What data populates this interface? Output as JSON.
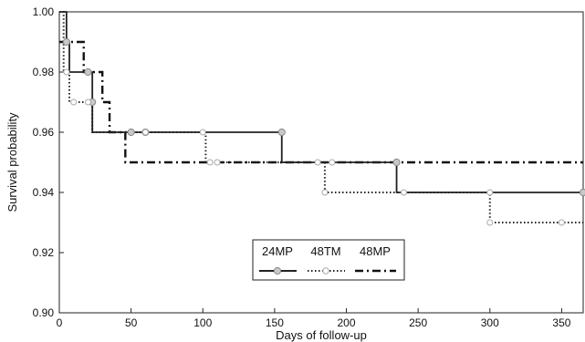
{
  "chart_data": {
    "type": "line",
    "subtype": "step",
    "xlabel": "Days of follow-up",
    "ylabel": "Survival probability",
    "xlim": [
      0,
      365
    ],
    "ylim": [
      0.9,
      1.0
    ],
    "x_ticks": [
      "0",
      "50",
      "100",
      "150",
      "200",
      "250",
      "300",
      "350"
    ],
    "y_ticks": [
      "0.90",
      "0.92",
      "0.94",
      "0.96",
      "0.98",
      "1.00"
    ],
    "grid": false,
    "legend": {
      "placement": "bottom-center",
      "entries": [
        "24MP",
        "48TM",
        "48MP"
      ]
    },
    "series": [
      {
        "name": "24MP",
        "line_style": "solid",
        "color": "#222222",
        "steps": [
          [
            0,
            1.0
          ],
          [
            5,
            0.99
          ],
          [
            7,
            0.98
          ],
          [
            23,
            0.96
          ],
          [
            155,
            0.95
          ],
          [
            235,
            0.94
          ],
          [
            365,
            0.94
          ]
        ],
        "censored": [
          [
            5,
            0.99
          ],
          [
            20,
            0.98
          ],
          [
            23,
            0.97
          ],
          [
            50,
            0.96
          ],
          [
            60,
            0.96
          ],
          [
            155,
            0.96
          ],
          [
            235,
            0.95
          ],
          [
            365,
            0.94
          ]
        ]
      },
      {
        "name": "48TM",
        "line_style": "dotted",
        "color": "#222222",
        "steps": [
          [
            0,
            1.0
          ],
          [
            3,
            0.98
          ],
          [
            7,
            0.97
          ],
          [
            23,
            0.96
          ],
          [
            102,
            0.95
          ],
          [
            185,
            0.94
          ],
          [
            300,
            0.93
          ],
          [
            365,
            0.93
          ]
        ],
        "censored": [
          [
            5,
            0.98
          ],
          [
            10,
            0.97
          ],
          [
            20,
            0.97
          ],
          [
            60,
            0.96
          ],
          [
            100,
            0.96
          ],
          [
            105,
            0.95
          ],
          [
            110,
            0.95
          ],
          [
            180,
            0.95
          ],
          [
            190,
            0.95
          ],
          [
            185,
            0.94
          ],
          [
            240,
            0.94
          ],
          [
            300,
            0.94
          ],
          [
            300,
            0.93
          ],
          [
            350,
            0.93
          ]
        ]
      },
      {
        "name": "48MP",
        "line_style": "dash-dot",
        "color": "#111111",
        "steps": [
          [
            0,
            0.99
          ],
          [
            17,
            0.98
          ],
          [
            30,
            0.97
          ],
          [
            35,
            0.96
          ],
          [
            46,
            0.95
          ],
          [
            365,
            0.95
          ]
        ],
        "censored": []
      }
    ]
  }
}
